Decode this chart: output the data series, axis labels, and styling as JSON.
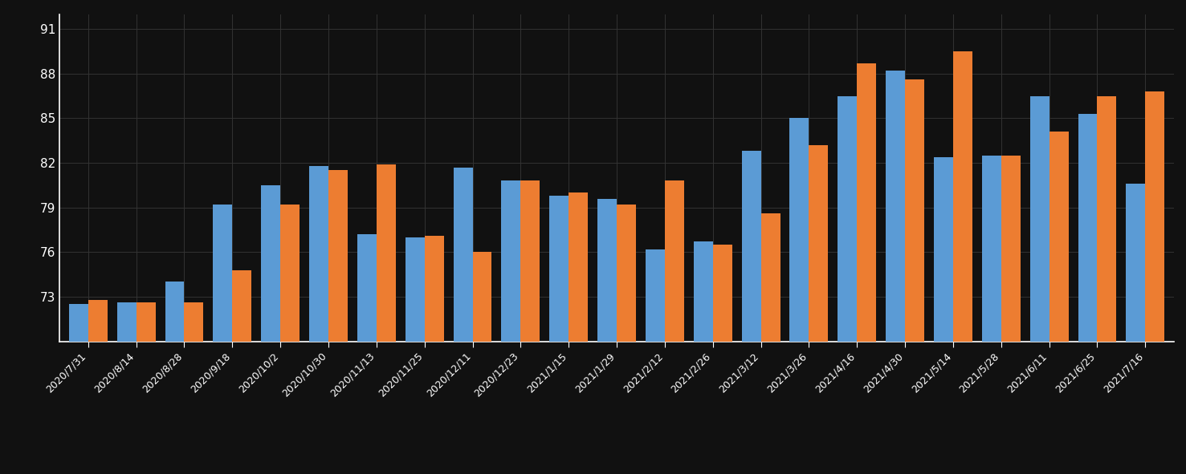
{
  "categories": [
    "2020/7/31",
    "2020/8/14",
    "2020/8/28",
    "2020/9/18",
    "2020/10/2",
    "2020/10/30",
    "2020/11/13",
    "2020/11/25",
    "2020/12/11",
    "2020/12/23",
    "2021/1/15",
    "2021/1/29",
    "2021/2/12",
    "2021/2/26",
    "2021/3/12",
    "2021/3/26",
    "2021/4/16",
    "2021/4/30",
    "2021/5/14",
    "2021/5/28",
    "2021/6/11",
    "2021/6/25",
    "2021/7/16"
  ],
  "blue_values": [
    72.5,
    72.6,
    74.0,
    79.2,
    80.5,
    81.8,
    77.2,
    77.0,
    81.7,
    80.8,
    79.8,
    79.6,
    76.2,
    76.7,
    82.8,
    85.0,
    86.5,
    88.2,
    82.4,
    82.5,
    86.5,
    85.3,
    80.6
  ],
  "orange_values": [
    72.8,
    72.6,
    72.6,
    74.8,
    79.2,
    81.5,
    81.9,
    77.1,
    76.0,
    80.8,
    80.0,
    79.2,
    80.8,
    76.5,
    78.6,
    83.2,
    88.7,
    87.6,
    89.5,
    82.5,
    84.1,
    86.5,
    86.8
  ],
  "blue_color": "#5B9BD5",
  "orange_color": "#ED7D31",
  "background_color": "#111111",
  "grid_color": "#333333",
  "text_color": "#FFFFFF",
  "axis_line_color": "#FFFFFF",
  "ylim_min": 70,
  "ylim_max": 92,
  "yticks": [
    73,
    76,
    79,
    82,
    85,
    88,
    91
  ],
  "ytick_labels": [
    "73",
    "76",
    "79",
    "82",
    "85",
    "88",
    "91"
  ],
  "bar_width": 0.4,
  "tick_fontsize": 11,
  "xtick_fontsize": 9
}
